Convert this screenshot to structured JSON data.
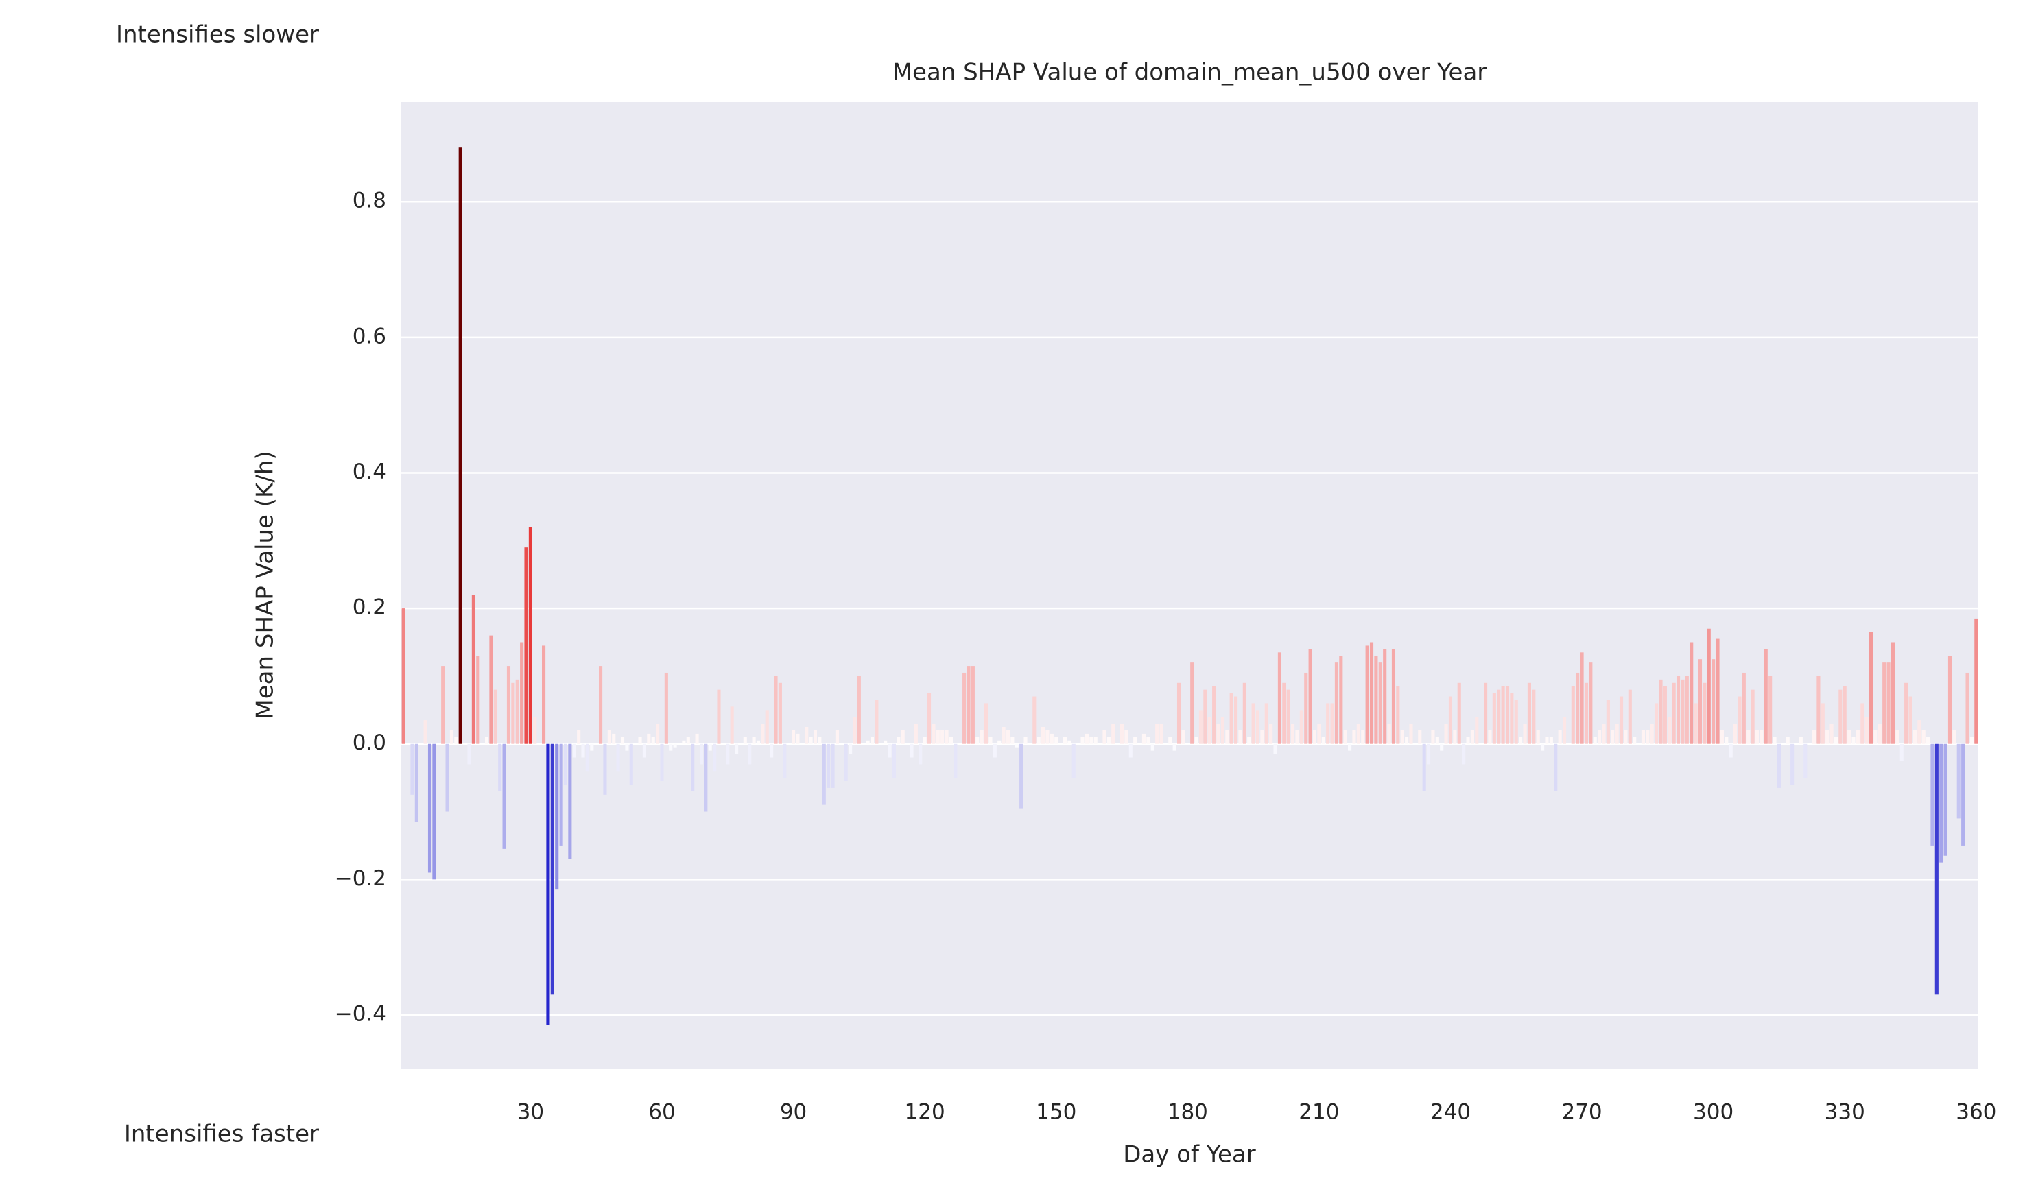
{
  "chart_data": {
    "type": "bar",
    "title": "Mean SHAP Value of domain_mean_u500 over Year",
    "xlabel": "Day of Year",
    "ylabel": "Mean SHAP Value (K/h)",
    "annotations": [
      "Intensifies slower",
      "Intensifies faster"
    ],
    "x": [
      1,
      2,
      3,
      4,
      5,
      6,
      7,
      8,
      9,
      10,
      11,
      12,
      13,
      14,
      15,
      16,
      17,
      18,
      19,
      20,
      21,
      22,
      23,
      24,
      25,
      26,
      27,
      28,
      29,
      30,
      31,
      32,
      33,
      34,
      35,
      36,
      37,
      38,
      39,
      40,
      41,
      42,
      43,
      44,
      45,
      46,
      47,
      48,
      49,
      50,
      51,
      52,
      53,
      54,
      55,
      56,
      57,
      58,
      59,
      60,
      61,
      62,
      63,
      64,
      65,
      66,
      67,
      68,
      69,
      70,
      71,
      72,
      73,
      74,
      75,
      76,
      77,
      78,
      79,
      80,
      81,
      82,
      83,
      84,
      85,
      86,
      87,
      88,
      89,
      90,
      91,
      92,
      93,
      94,
      95,
      96,
      97,
      98,
      99,
      100,
      101,
      102,
      103,
      104,
      105,
      106,
      107,
      108,
      109,
      110,
      111,
      112,
      113,
      114,
      115,
      116,
      117,
      118,
      119,
      120,
      121,
      122,
      123,
      124,
      125,
      126,
      127,
      128,
      129,
      130,
      131,
      132,
      133,
      134,
      135,
      136,
      137,
      138,
      139,
      140,
      141,
      142,
      143,
      144,
      145,
      146,
      147,
      148,
      149,
      150,
      151,
      152,
      153,
      154,
      155,
      156,
      157,
      158,
      159,
      160,
      161,
      162,
      163,
      164,
      165,
      166,
      167,
      168,
      169,
      170,
      171,
      172,
      173,
      174,
      175,
      176,
      177,
      178,
      179,
      180,
      181,
      182,
      183,
      184,
      185,
      186,
      187,
      188,
      189,
      190,
      191,
      192,
      193,
      194,
      195,
      196,
      197,
      198,
      199,
      200,
      201,
      202,
      203,
      204,
      205,
      206,
      207,
      208,
      209,
      210,
      211,
      212,
      213,
      214,
      215,
      216,
      217,
      218,
      219,
      220,
      221,
      222,
      223,
      224,
      225,
      226,
      227,
      228,
      229,
      230,
      231,
      232,
      233,
      234,
      235,
      236,
      237,
      238,
      239,
      240,
      241,
      242,
      243,
      244,
      245,
      246,
      247,
      248,
      249,
      250,
      251,
      252,
      253,
      254,
      255,
      256,
      257,
      258,
      259,
      260,
      261,
      262,
      263,
      264,
      265,
      266,
      267,
      268,
      269,
      270,
      271,
      272,
      273,
      274,
      275,
      276,
      277,
      278,
      279,
      280,
      281,
      282,
      283,
      284,
      285,
      286,
      287,
      288,
      289,
      290,
      291,
      292,
      293,
      294,
      295,
      296,
      297,
      298,
      299,
      300,
      301,
      302,
      303,
      304,
      305,
      306,
      307,
      308,
      309,
      310,
      311,
      312,
      313,
      314,
      315,
      316,
      317,
      318,
      319,
      320,
      321,
      322,
      323,
      324,
      325,
      326,
      327,
      328,
      329,
      330,
      331,
      332,
      333,
      334,
      335,
      336,
      337,
      338,
      339,
      340,
      341,
      342,
      343,
      344,
      345,
      346,
      347,
      348,
      349,
      350,
      351,
      352,
      353,
      354,
      355,
      356,
      357,
      358,
      359,
      360
    ],
    "values": [
      0.2,
      0.0,
      -0.075,
      -0.115,
      0.0,
      0.035,
      -0.19,
      -0.2,
      0.0,
      0.115,
      -0.1,
      0.02,
      0.01,
      0.88,
      0.0,
      -0.03,
      0.22,
      0.13,
      0.0,
      0.01,
      0.16,
      0.08,
      -0.07,
      -0.155,
      0.115,
      0.09,
      0.095,
      0.15,
      0.29,
      0.32,
      0.04,
      0.0,
      0.145,
      -0.415,
      -0.37,
      -0.215,
      -0.15,
      -0.06,
      -0.17,
      -0.02,
      0.02,
      -0.02,
      -0.04,
      -0.01,
      0.0,
      0.115,
      -0.075,
      0.02,
      0.015,
      -0.04,
      0.01,
      -0.01,
      -0.06,
      0.0,
      0.01,
      -0.02,
      0.015,
      0.01,
      0.03,
      -0.055,
      0.105,
      -0.01,
      -0.005,
      0.0,
      0.005,
      0.01,
      -0.07,
      0.015,
      -0.03,
      -0.1,
      -0.01,
      -0.04,
      0.08,
      0.0,
      -0.03,
      0.055,
      -0.015,
      0.0,
      0.01,
      -0.03,
      0.01,
      0.005,
      0.03,
      0.05,
      -0.02,
      0.1,
      0.09,
      -0.05,
      0.0,
      0.02,
      0.015,
      0.0,
      0.025,
      0.01,
      0.02,
      0.01,
      -0.09,
      -0.065,
      -0.065,
      0.02,
      0.0,
      -0.055,
      -0.015,
      0.04,
      0.1,
      0.0,
      0.005,
      0.01,
      0.065,
      0.0,
      0.005,
      -0.02,
      -0.05,
      0.01,
      0.02,
      0.0,
      -0.02,
      0.03,
      -0.03,
      0.01,
      0.075,
      0.03,
      0.02,
      0.02,
      0.02,
      0.01,
      -0.05,
      0.0,
      0.105,
      0.115,
      0.115,
      0.01,
      0.02,
      0.06,
      0.01,
      -0.02,
      0.005,
      0.025,
      0.02,
      0.01,
      -0.005,
      -0.095,
      0.01,
      0.0,
      0.07,
      0.01,
      0.025,
      0.02,
      0.015,
      0.01,
      0.0,
      0.01,
      0.005,
      -0.05,
      0.0,
      0.01,
      0.015,
      0.01,
      0.01,
      0.0,
      0.02,
      0.01,
      0.03,
      0.0,
      0.03,
      0.02,
      -0.02,
      0.01,
      0.0,
      0.015,
      0.01,
      -0.01,
      0.03,
      0.03,
      0.0,
      0.01,
      -0.01,
      0.09,
      0.02,
      0.0,
      0.12,
      0.01,
      0.05,
      0.08,
      0.04,
      0.085,
      0.03,
      0.04,
      0.02,
      0.075,
      0.07,
      0.02,
      0.09,
      0.01,
      0.06,
      0.05,
      0.02,
      0.06,
      0.03,
      -0.015,
      0.135,
      0.09,
      0.08,
      0.03,
      0.02,
      0.05,
      0.105,
      0.14,
      0.02,
      0.03,
      0.01,
      0.06,
      0.06,
      0.12,
      0.13,
      0.02,
      -0.01,
      0.02,
      0.03,
      0.02,
      0.145,
      0.15,
      0.13,
      0.12,
      0.14,
      0.03,
      0.14,
      0.085,
      0.02,
      0.01,
      0.03,
      0.0,
      0.02,
      -0.07,
      -0.03,
      0.02,
      0.01,
      -0.01,
      0.03,
      0.07,
      0.02,
      0.09,
      -0.03,
      0.01,
      0.02,
      0.04,
      0.0,
      0.09,
      0.02,
      0.075,
      0.08,
      0.085,
      0.085,
      0.075,
      0.065,
      0.01,
      0.03,
      0.09,
      0.08,
      0.02,
      -0.01,
      0.01,
      0.01,
      -0.07,
      0.02,
      0.04,
      0.0,
      0.085,
      0.105,
      0.135,
      0.09,
      0.12,
      0.01,
      0.02,
      0.03,
      0.065,
      0.02,
      0.03,
      0.07,
      0.02,
      0.08,
      0.01,
      0.0,
      0.02,
      0.02,
      0.03,
      0.06,
      0.095,
      0.085,
      0.04,
      0.09,
      0.1,
      0.095,
      0.1,
      0.15,
      0.06,
      0.125,
      0.09,
      0.17,
      0.125,
      0.155,
      0.02,
      0.01,
      -0.02,
      0.03,
      0.07,
      0.105,
      0.02,
      0.08,
      0.02,
      0.02,
      0.14,
      0.1,
      0.01,
      -0.065,
      0.0,
      0.01,
      -0.06,
      0.0,
      0.01,
      -0.05,
      0.0,
      0.02,
      0.1,
      0.06,
      0.02,
      0.03,
      0.01,
      0.08,
      0.085,
      0.02,
      0.01,
      0.02,
      0.06,
      0.04,
      0.165,
      0.02,
      0.03,
      0.12,
      0.12,
      0.15,
      0.02,
      -0.025,
      0.09,
      0.07,
      0.02,
      0.035,
      0.02,
      0.01,
      -0.15,
      -0.37,
      -0.175,
      -0.165,
      0.13,
      0.02,
      -0.11,
      -0.15,
      0.105,
      0.01,
      0.185
    ],
    "color_scale": [
      {
        "value": -0.42,
        "color": "#2222cc"
      },
      {
        "value": 0,
        "color": "#ffffff"
      },
      {
        "value": 0.32,
        "color": "#e83a3a"
      },
      {
        "value": 0.88,
        "color": "#6b0000"
      }
    ],
    "xlim": [
      0.5,
      360.5
    ],
    "xticks": [
      30,
      60,
      90,
      120,
      150,
      180,
      210,
      240,
      270,
      300,
      330,
      360
    ],
    "ylim": [
      -0.48,
      0.947
    ],
    "yticks": [
      {
        "value": -0.4,
        "label": "−0.4"
      },
      {
        "value": -0.2,
        "label": "−0.2"
      },
      {
        "value": 0,
        "label": "0.0"
      },
      0.2,
      0.4,
      0.6,
      0.8
    ],
    "grid": true
  }
}
